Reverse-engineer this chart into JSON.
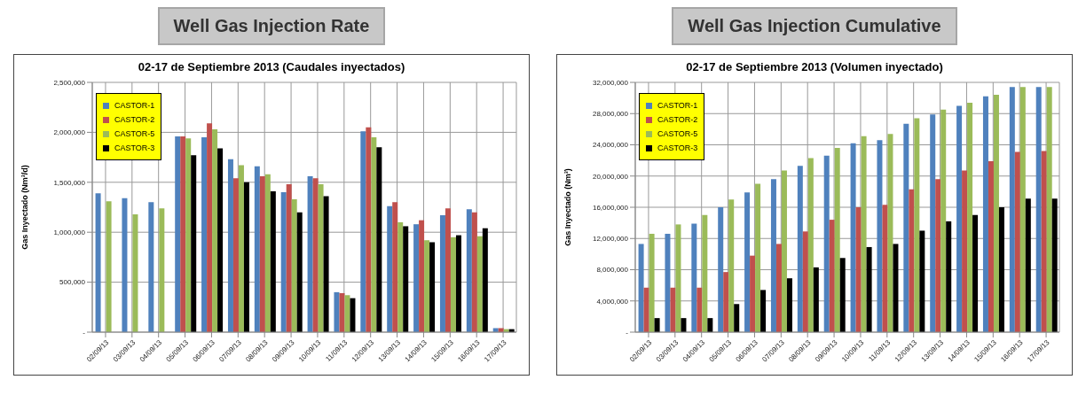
{
  "chart_data": [
    {
      "type": "bar",
      "title": "Well Gas Injection Rate",
      "subtitle": "02-17 de Septiembre 2013 (Caudales  inyectados)",
      "ylabel": "Gas Inyectado (Nm³/d)",
      "categories": [
        "02/09/13",
        "03/09/13",
        "04/09/13",
        "05/09/13",
        "06/09/13",
        "07/09/13",
        "08/09/13",
        "09/09/13",
        "10/09/13",
        "11/09/13",
        "12/09/13",
        "13/09/13",
        "14/09/13",
        "15/09/13",
        "16/09/13",
        "17/09/13"
      ],
      "series": [
        {
          "name": "CASTOR-1",
          "color": "#4f81bd",
          "values": [
            1390000,
            1340000,
            1300000,
            1960000,
            1950000,
            1730000,
            1660000,
            1400000,
            1560000,
            400000,
            2010000,
            1260000,
            1080000,
            1170000,
            1230000,
            40000
          ]
        },
        {
          "name": "CASTOR-2",
          "color": "#c0504d",
          "values": [
            null,
            null,
            null,
            1960000,
            2090000,
            1540000,
            1560000,
            1480000,
            1540000,
            390000,
            2050000,
            1300000,
            1120000,
            1240000,
            1200000,
            40000
          ]
        },
        {
          "name": "CASTOR-5",
          "color": "#9bbb59",
          "values": [
            1310000,
            1180000,
            1240000,
            1940000,
            2030000,
            1670000,
            1580000,
            1330000,
            1480000,
            370000,
            1950000,
            1100000,
            920000,
            950000,
            960000,
            30000
          ]
        },
        {
          "name": "CASTOR-3",
          "color": "#000000",
          "values": [
            null,
            null,
            null,
            1770000,
            1840000,
            1500000,
            1410000,
            1200000,
            1360000,
            340000,
            1850000,
            1060000,
            900000,
            970000,
            1040000,
            30000
          ]
        }
      ],
      "ylim": [
        0,
        2500000
      ],
      "yticks": [
        {
          "value": 0,
          "label": "-"
        },
        {
          "value": 500000,
          "label": "500,000"
        },
        {
          "value": 1000000,
          "label": "1,000,000"
        },
        {
          "value": 1500000,
          "label": "1,500,000"
        },
        {
          "value": 2000000,
          "label": "2,000,000"
        },
        {
          "value": 2500000,
          "label": "2,500,000"
        }
      ],
      "grid": true,
      "legend": "top left"
    },
    {
      "type": "bar",
      "title": "Well Gas Injection Cumulative",
      "subtitle": "02-17 de Septiembre 2013 (Volumen inyectado)",
      "ylabel": "Gas Inyectado (Nm³)",
      "categories": [
        "02/09/13",
        "03/09/13",
        "04/09/13",
        "05/09/13",
        "06/09/13",
        "07/09/13",
        "08/09/13",
        "09/09/13",
        "10/09/13",
        "11/09/13",
        "12/09/13",
        "13/09/13",
        "14/09/13",
        "15/09/13",
        "16/09/13",
        "17/09/13"
      ],
      "series": [
        {
          "name": "CASTOR-1",
          "color": "#4f81bd",
          "values": [
            11300000,
            12600000,
            13900000,
            16000000,
            17900000,
            19600000,
            21300000,
            22600000,
            24200000,
            24600000,
            26700000,
            27900000,
            29000000,
            30200000,
            31400000,
            31400000
          ]
        },
        {
          "name": "CASTOR-2",
          "color": "#c0504d",
          "values": [
            5700000,
            5700000,
            5700000,
            7700000,
            9800000,
            11300000,
            12900000,
            14400000,
            16000000,
            16300000,
            18300000,
            19600000,
            20700000,
            21900000,
            23100000,
            23200000
          ]
        },
        {
          "name": "CASTOR-5",
          "color": "#9bbb59",
          "values": [
            12600000,
            13800000,
            15000000,
            17000000,
            19000000,
            20700000,
            22300000,
            23600000,
            25100000,
            25400000,
            27400000,
            28500000,
            29400000,
            30400000,
            31400000,
            31400000
          ]
        },
        {
          "name": "CASTOR-3",
          "color": "#000000",
          "values": [
            1800000,
            1800000,
            1800000,
            3600000,
            5400000,
            6900000,
            8300000,
            9500000,
            10900000,
            11300000,
            13000000,
            14200000,
            15000000,
            16000000,
            17100000,
            17100000
          ]
        }
      ],
      "ylim": [
        0,
        32000000
      ],
      "yticks": [
        {
          "value": 0,
          "label": "-"
        },
        {
          "value": 4000000,
          "label": "4,000,000"
        },
        {
          "value": 8000000,
          "label": "8,000,000"
        },
        {
          "value": 12000000,
          "label": "12,000,000"
        },
        {
          "value": 16000000,
          "label": "16,000,000"
        },
        {
          "value": 20000000,
          "label": "20,000,000"
        },
        {
          "value": 24000000,
          "label": "24,000,000"
        },
        {
          "value": 28000000,
          "label": "28,000,000"
        },
        {
          "value": 32000000,
          "label": "32,000,000"
        }
      ],
      "grid": true,
      "legend": "top left"
    }
  ]
}
